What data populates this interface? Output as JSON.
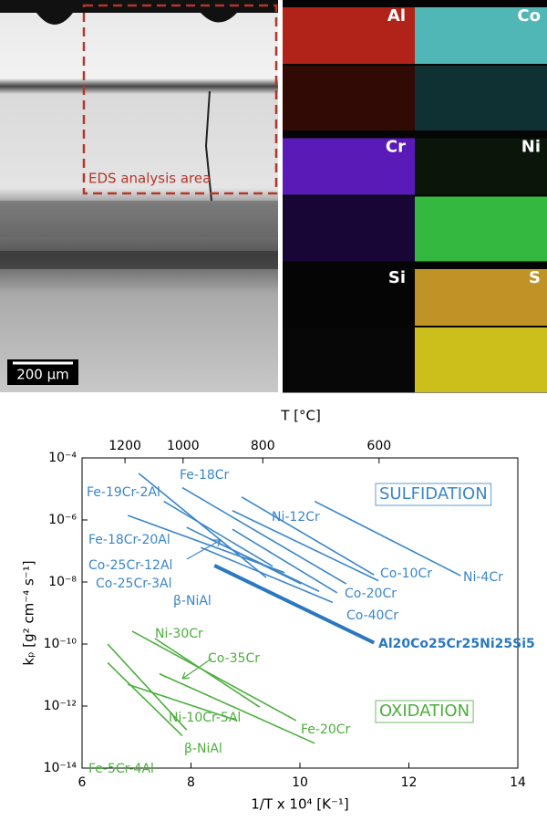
{
  "micrograph": {
    "area_label": "EDS analysis area",
    "scale_bar": "200 μm",
    "maps": [
      "Al",
      "Co",
      "Cr",
      "Ni",
      "Si",
      "S"
    ]
  },
  "chart_data": {
    "type": "line",
    "log_y": true,
    "xlabel": "1/T x 10⁴ [K⁻¹]",
    "ylabel": "kₚ [g² cm⁻⁴ s⁻¹]",
    "x2label": "T [°C]",
    "xlim": [
      6,
      14
    ],
    "xticks": [
      6,
      8,
      10,
      12,
      14
    ],
    "x2ticks": [
      1200,
      1000,
      800,
      600
    ],
    "ylim": [
      1e-14,
      0.0001
    ],
    "yticks": [
      {
        "value": 1e-14,
        "label": "10⁻¹⁴"
      },
      {
        "value": 1e-12,
        "label": "10⁻¹²"
      },
      {
        "value": 1e-10,
        "label": "10⁻¹⁰"
      },
      {
        "value": 1e-08,
        "label": "10⁻⁸"
      },
      {
        "value": 1e-06,
        "label": "10⁻⁶"
      },
      {
        "value": 0.0001,
        "label": "10⁻⁴"
      }
    ],
    "annotations": [
      "SULFIDATION",
      "OXIDATION"
    ],
    "series": [
      {
        "name": "Fe-19Cr-2Al",
        "color": "#3a86c8",
        "x": [
          7.04,
          9.38
        ],
        "values": [
          3.2e-05,
          1.4e-08
        ]
      },
      {
        "name": "Fe-18Cr",
        "color": "#3a86c8",
        "x": [
          7.84,
          10.85
        ],
        "values": [
          1.1e-05,
          8.7e-09
        ]
      },
      {
        "name": "Fe-18Cr-20Al",
        "color": "#3a86c8",
        "x": [
          7.5,
          9.5
        ],
        "values": [
          4e-06,
          3.2e-08
        ]
      },
      {
        "name": "Ni-12Cr",
        "color": "#3a86c8",
        "x": [
          8.93,
          11.36
        ],
        "values": [
          5.5e-06,
          1.7e-08
        ]
      },
      {
        "name": "Ni-4Cr",
        "color": "#3a86c8",
        "x": [
          10.27,
          12.95
        ],
        "values": [
          4e-06,
          1.6e-08
        ]
      },
      {
        "name": "Co-10Cr",
        "color": "#3a86c8",
        "x": [
          8.76,
          11.44
        ],
        "values": [
          2e-06,
          1.1e-08
        ]
      },
      {
        "name": "Co-25Cr-12Al",
        "color": "#3a86c8",
        "x": [
          8.34,
          10.35
        ],
        "values": [
          2.5e-07,
          5e-09
        ]
      },
      {
        "name": "Co-25Cr-3Al",
        "color": "#3a86c8",
        "x": [
          7.92,
          10.02
        ],
        "values": [
          5.8e-07,
          8.7e-09
        ]
      },
      {
        "name": "Co-20Cr",
        "color": "#3a86c8",
        "x": [
          8.76,
          10.68
        ],
        "values": [
          5e-07,
          4.5e-09
        ]
      },
      {
        "name": "Co-40Cr",
        "color": "#3a86c8",
        "x": [
          8.18,
          10.6
        ],
        "values": [
          1.3e-07,
          2.2e-09
        ]
      },
      {
        "name": "β-NiAl",
        "color": "#3a86c8",
        "x": [
          6.84,
          9.72
        ],
        "values": [
          1.4e-06,
          2e-08
        ]
      },
      {
        "name": "Al20Co25Cr25Ni25Si5",
        "color": "#2a78c0",
        "x": [
          8.43,
          11.36
        ],
        "values": [
          3.4e-08,
          1.1e-10
        ]
      },
      {
        "name": "Ni-30Cr",
        "color": "#4cae3c",
        "x": [
          6.92,
          9.93
        ],
        "values": [
          2.6e-10,
          3.4e-13
        ]
      },
      {
        "name": "Co-35Cr",
        "color": "#4cae3c",
        "x": [
          7.34,
          9.26
        ],
        "values": [
          1.5e-10,
          9.3e-13
        ]
      },
      {
        "name": "Ni-10Cr-5Al",
        "color": "#4cae3c",
        "x": [
          6.84,
          8.85
        ],
        "values": [
          5e-12,
          3.4e-13
        ]
      },
      {
        "name": "Fe-20Cr",
        "color": "#4cae3c",
        "x": [
          7.42,
          10.27
        ],
        "values": [
          1.1e-11,
          6.3e-14
        ]
      },
      {
        "name": "Fe-5Cr-4Al",
        "color": "#4cae3c",
        "x": [
          6.47,
          7.84
        ],
        "values": [
          2.5e-11,
          1.1e-13
        ]
      },
      {
        "name": "β-NiAl",
        "color": "#4cae3c",
        "x": [
          6.47,
          7.92
        ],
        "values": [
          1e-10,
          1.7e-13
        ]
      }
    ]
  }
}
